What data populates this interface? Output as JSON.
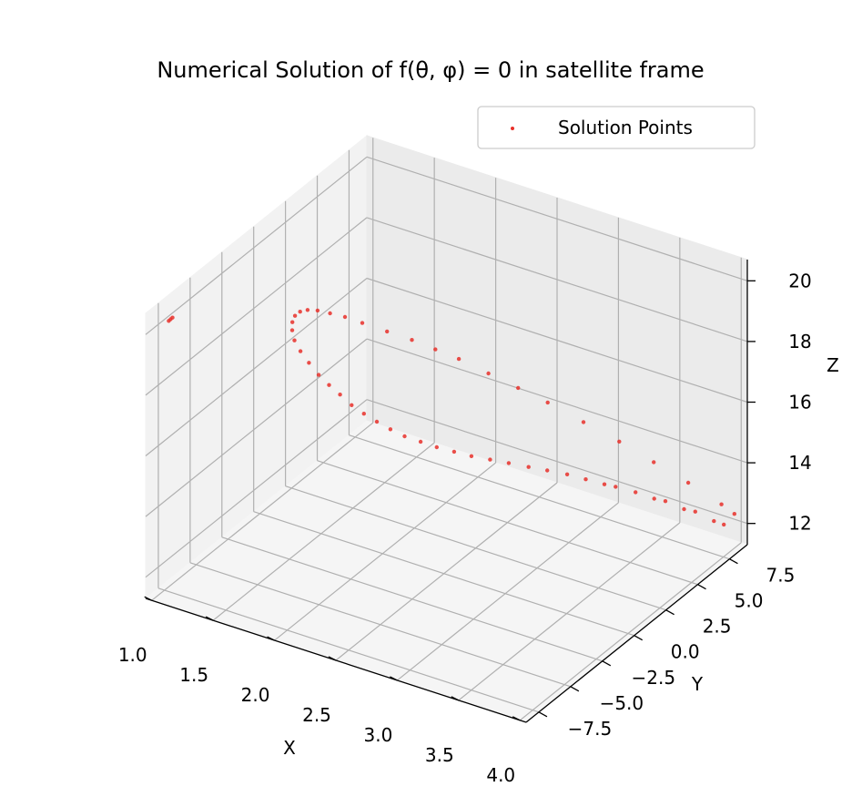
{
  "chart_data": {
    "type": "scatter",
    "projection": "3d",
    "title": "Numerical Solution of f(θ, φ) = 0 in satellite frame",
    "xlabel": "X",
    "ylabel": "Y",
    "zlabel": "Z",
    "xlim": [
      0.95,
      4.05
    ],
    "ylim": [
      -8.5,
      8.9
    ],
    "zlim": [
      11.3,
      20.7
    ],
    "xticks": [
      "1.0",
      "1.5",
      "2.0",
      "2.5",
      "3.0",
      "3.5",
      "4.0"
    ],
    "yticks": [
      "−7.5",
      "−5.0",
      "−2.5",
      "0.0",
      "2.5",
      "5.0",
      "7.5"
    ],
    "zticks": [
      "12",
      "14",
      "16",
      "18",
      "20"
    ],
    "grid": true,
    "legend": {
      "position": "top-right",
      "entries": [
        "Solution Points"
      ]
    },
    "series": [
      {
        "name": "Solution Points",
        "color": "#e8302a",
        "points": [
          [
            3.9,
            8.5,
            11.9
          ],
          [
            3.85,
            8.2,
            12.05
          ],
          [
            3.75,
            7.7,
            12.4
          ],
          [
            3.7,
            7.3,
            12.55
          ],
          [
            3.6,
            6.8,
            12.85
          ],
          [
            3.55,
            6.4,
            13.0
          ],
          [
            3.45,
            5.9,
            13.25
          ],
          [
            3.35,
            5.3,
            13.5
          ],
          [
            3.3,
            4.9,
            13.65
          ],
          [
            3.2,
            4.4,
            13.85
          ],
          [
            3.1,
            3.9,
            14.05
          ],
          [
            3.0,
            3.3,
            14.25
          ],
          [
            2.9,
            2.8,
            14.4
          ],
          [
            2.8,
            2.2,
            14.6
          ],
          [
            2.7,
            1.7,
            14.75
          ],
          [
            2.6,
            1.2,
            14.9
          ],
          [
            2.5,
            0.8,
            15.05
          ],
          [
            2.4,
            0.4,
            15.2
          ],
          [
            2.3,
            0.1,
            15.35
          ],
          [
            2.2,
            -0.2,
            15.5
          ],
          [
            2.1,
            -0.35,
            15.65
          ],
          [
            2.0,
            -0.45,
            15.8
          ],
          [
            1.9,
            -0.5,
            15.95
          ],
          [
            1.8,
            -0.5,
            16.1
          ],
          [
            1.7,
            -0.45,
            16.3
          ],
          [
            1.6,
            -0.35,
            16.45
          ],
          [
            1.5,
            -0.2,
            16.6
          ],
          [
            1.4,
            0.0,
            16.8
          ],
          [
            1.3,
            0.3,
            16.95
          ],
          [
            1.22,
            0.6,
            17.1
          ],
          [
            1.16,
            1.0,
            17.22
          ],
          [
            1.12,
            1.4,
            17.3
          ],
          [
            1.1,
            1.8,
            17.35
          ],
          [
            1.1,
            2.2,
            17.35
          ],
          [
            1.12,
            2.6,
            17.3
          ],
          [
            1.16,
            3.0,
            17.2
          ],
          [
            1.22,
            3.4,
            17.05
          ],
          [
            1.3,
            3.8,
            16.9
          ],
          [
            1.4,
            4.2,
            16.7
          ],
          [
            1.55,
            4.7,
            16.45
          ],
          [
            1.7,
            5.2,
            16.2
          ],
          [
            1.85,
            5.6,
            15.95
          ],
          [
            2.0,
            6.0,
            15.7
          ],
          [
            2.2,
            6.4,
            15.35
          ],
          [
            2.4,
            6.8,
            15.0
          ],
          [
            2.6,
            7.2,
            14.65
          ],
          [
            2.85,
            7.6,
            14.2
          ],
          [
            3.1,
            8.0,
            13.75
          ],
          [
            3.35,
            8.3,
            13.3
          ],
          [
            3.6,
            8.6,
            12.85
          ],
          [
            3.85,
            8.8,
            12.4
          ],
          [
            3.95,
            8.85,
            12.2
          ],
          [
            1.05,
            -7.5,
            20.3
          ],
          [
            1.06,
            -7.45,
            20.35
          ],
          [
            1.04,
            -7.55,
            20.25
          ]
        ]
      }
    ]
  }
}
